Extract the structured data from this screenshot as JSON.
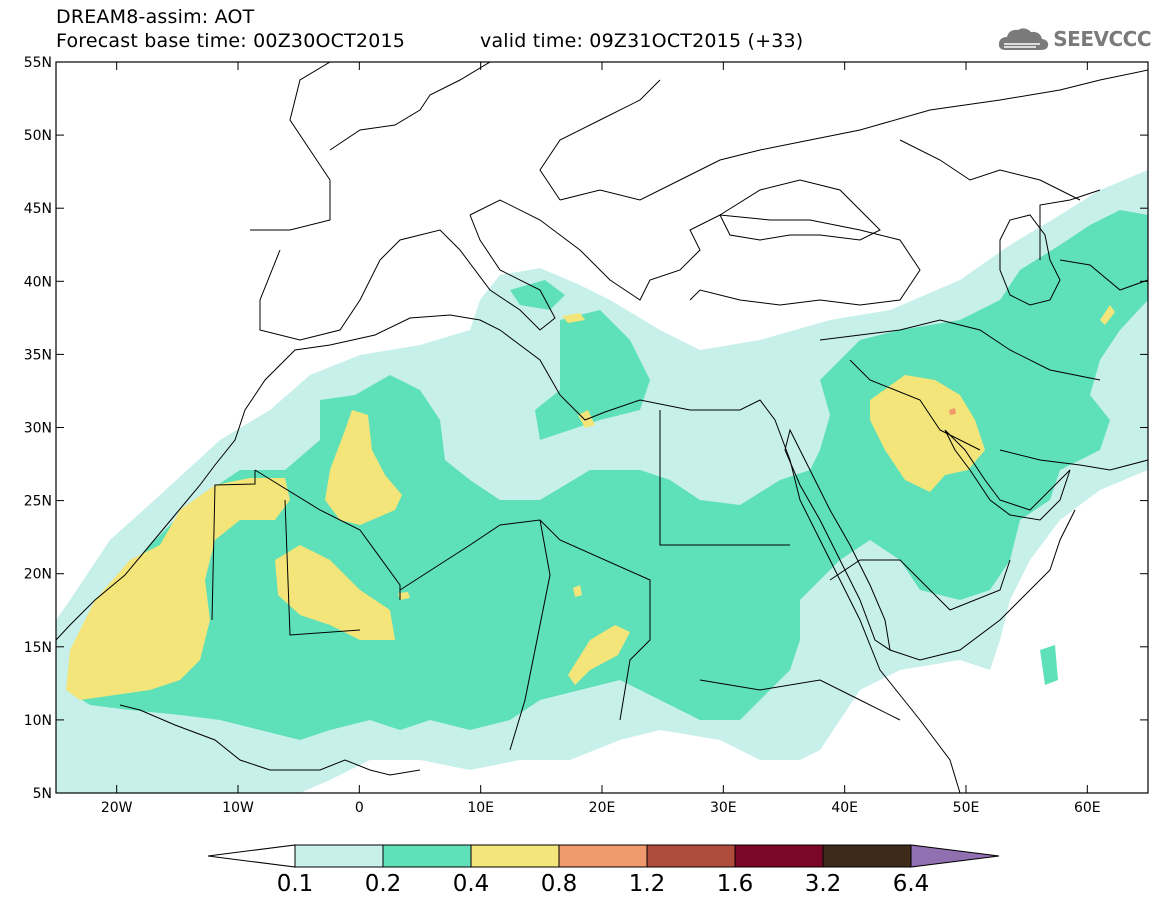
{
  "title": {
    "line1": "DREAM8-assim: AOT",
    "line2": "Forecast base time: 00Z30OCT2015",
    "line3": "valid time: 09Z31OCT2015 (+33)"
  },
  "logo": {
    "text": "SEEVCCC",
    "icon": "cloud-icon"
  },
  "map": {
    "lon_range": [
      -25,
      65
    ],
    "lat_range": [
      5,
      55
    ],
    "lon_ticks": [
      {
        "v": -20,
        "label": "20W"
      },
      {
        "v": -10,
        "label": "10W"
      },
      {
        "v": 0,
        "label": "0"
      },
      {
        "v": 10,
        "label": "10E"
      },
      {
        "v": 20,
        "label": "20E"
      },
      {
        "v": 30,
        "label": "30E"
      },
      {
        "v": 40,
        "label": "40E"
      },
      {
        "v": 50,
        "label": "50E"
      },
      {
        "v": 60,
        "label": "60E"
      }
    ],
    "lat_ticks": [
      {
        "v": 5,
        "label": "5N"
      },
      {
        "v": 10,
        "label": "10N"
      },
      {
        "v": 15,
        "label": "15N"
      },
      {
        "v": 20,
        "label": "20N"
      },
      {
        "v": 25,
        "label": "25N"
      },
      {
        "v": 30,
        "label": "30N"
      },
      {
        "v": 35,
        "label": "35N"
      },
      {
        "v": 40,
        "label": "40N"
      },
      {
        "v": 45,
        "label": "45N"
      },
      {
        "v": 50,
        "label": "50N"
      },
      {
        "v": 55,
        "label": "55N"
      }
    ]
  },
  "colorbar": {
    "colors": [
      "#c8f0ea",
      "#5ee0b8",
      "#f4e57a",
      "#ee9a6c",
      "#b04c3c",
      "#7c0626",
      "#3e2a1a"
    ],
    "under_color": "#ffffff",
    "over_color": "#9070b0",
    "labels": [
      "0.1",
      "0.2",
      "0.4",
      "0.8",
      "1.2",
      "1.6",
      "3.2",
      "6.4"
    ]
  }
}
